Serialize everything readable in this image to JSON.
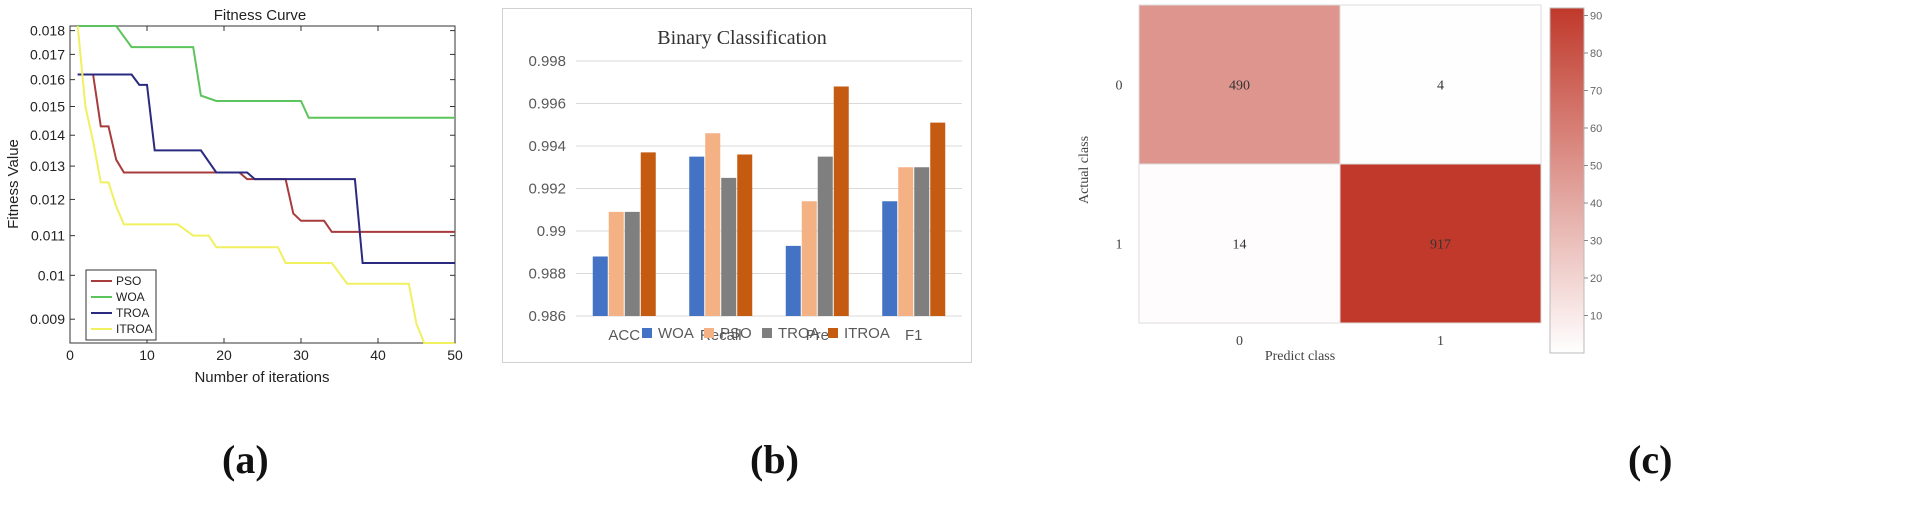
{
  "panel_labels": [
    "(a)",
    "(b)",
    "(c)"
  ],
  "chart_data": [
    {
      "type": "line",
      "title": "Fitness Curve",
      "xlabel": "Number of iterations",
      "ylabel": "Fitness Value",
      "xlim": [
        0,
        50
      ],
      "ylim": [
        0.0085,
        0.0182
      ],
      "yscale": "log",
      "x_ticks": [
        0,
        10,
        20,
        30,
        40,
        50
      ],
      "y_ticks": [
        0.009,
        0.01,
        0.011,
        0.012,
        0.013,
        0.014,
        0.015,
        0.016,
        0.017,
        0.018
      ],
      "y_tick_labels": [
        "0.009",
        "0.01",
        "0.011",
        "0.012",
        "0.013",
        "0.014",
        "0.015",
        "0.016",
        "0.017",
        "0.018"
      ],
      "legend_position": "bottom-left",
      "series": [
        {
          "name": "PSO",
          "color": "#a83c3c",
          "steps": [
            [
              1,
              0.0162
            ],
            [
              3,
              0.0162
            ],
            [
              4,
              0.0143
            ],
            [
              5,
              0.0143
            ],
            [
              6,
              0.0132
            ],
            [
              7,
              0.0128
            ],
            [
              22,
              0.0128
            ],
            [
              23,
              0.0126
            ],
            [
              28,
              0.0126
            ],
            [
              29,
              0.0116
            ],
            [
              30,
              0.0114
            ],
            [
              33,
              0.0114
            ],
            [
              34,
              0.0111
            ],
            [
              50,
              0.0111
            ]
          ]
        },
        {
          "name": "WOA",
          "color": "#5cc45c",
          "steps": [
            [
              1,
              0.0182
            ],
            [
              6,
              0.0182
            ],
            [
              8,
              0.0173
            ],
            [
              16,
              0.0173
            ],
            [
              17,
              0.0154
            ],
            [
              19,
              0.0152
            ],
            [
              30,
              0.0152
            ],
            [
              31,
              0.0146
            ],
            [
              50,
              0.0146
            ]
          ]
        },
        {
          "name": "TROA",
          "color": "#2a2a80",
          "steps": [
            [
              1,
              0.0162
            ],
            [
              8,
              0.0162
            ],
            [
              9,
              0.0158
            ],
            [
              10,
              0.0158
            ],
            [
              11,
              0.0135
            ],
            [
              17,
              0.0135
            ],
            [
              19,
              0.0128
            ],
            [
              23,
              0.0128
            ],
            [
              24,
              0.0126
            ],
            [
              37,
              0.0126
            ],
            [
              38,
              0.0103
            ],
            [
              50,
              0.0103
            ]
          ]
        },
        {
          "name": "ITROA",
          "color": "#f0f060",
          "steps": [
            [
              1,
              0.0182
            ],
            [
              2,
              0.015
            ],
            [
              3,
              0.0138
            ],
            [
              4,
              0.0125
            ],
            [
              5,
              0.0125
            ],
            [
              6,
              0.0118
            ],
            [
              7,
              0.0113
            ],
            [
              14,
              0.0113
            ],
            [
              16,
              0.011
            ],
            [
              18,
              0.011
            ],
            [
              19,
              0.0107
            ],
            [
              27,
              0.0107
            ],
            [
              28,
              0.0103
            ],
            [
              34,
              0.0103
            ],
            [
              36,
              0.0098
            ],
            [
              44,
              0.0098
            ],
            [
              45,
              0.0089
            ],
            [
              46,
              0.0085
            ],
            [
              50,
              0.0085
            ]
          ]
        }
      ]
    },
    {
      "type": "bar",
      "title": "Binary Classification",
      "categories": [
        "ACC",
        "Recall",
        "Pre",
        "F1"
      ],
      "ylim": [
        0.986,
        0.998
      ],
      "y_ticks": [
        0.986,
        0.988,
        0.99,
        0.992,
        0.994,
        0.996,
        0.998
      ],
      "y_tick_labels": [
        "0.986",
        "0.988",
        "0.99",
        "0.992",
        "0.994",
        "0.996",
        "0.998"
      ],
      "grid": true,
      "legend_position": "bottom",
      "series": [
        {
          "name": "WOA",
          "color": "#4472c4",
          "values": [
            0.9888,
            0.9935,
            0.9893,
            0.9914
          ]
        },
        {
          "name": "PSO",
          "color": "#f4b183",
          "values": [
            0.9909,
            0.9946,
            0.9914,
            0.993
          ]
        },
        {
          "name": "TROA",
          "color": "#7f7f7f",
          "values": [
            0.9909,
            0.9925,
            0.9935,
            0.993
          ]
        },
        {
          "name": "ITROA",
          "color": "#c55a11",
          "values": [
            0.9937,
            0.9936,
            0.9968,
            0.9951
          ]
        }
      ]
    },
    {
      "type": "heatmap",
      "xlabel": "Predict class",
      "ylabel": "Actual class",
      "x_categories": [
        "0",
        "1"
      ],
      "y_categories": [
        "0",
        "1"
      ],
      "values": [
        [
          490,
          4
        ],
        [
          14,
          917
        ]
      ],
      "cell_labels": [
        [
          "490",
          "4"
        ],
        [
          "14",
          "917"
        ]
      ],
      "colorbar_ticks": [
        "10",
        "20",
        "30",
        "40",
        "50",
        "60",
        "70",
        "80",
        "90"
      ],
      "color_low": "#ffffff",
      "color_high": "#c0392b"
    }
  ]
}
